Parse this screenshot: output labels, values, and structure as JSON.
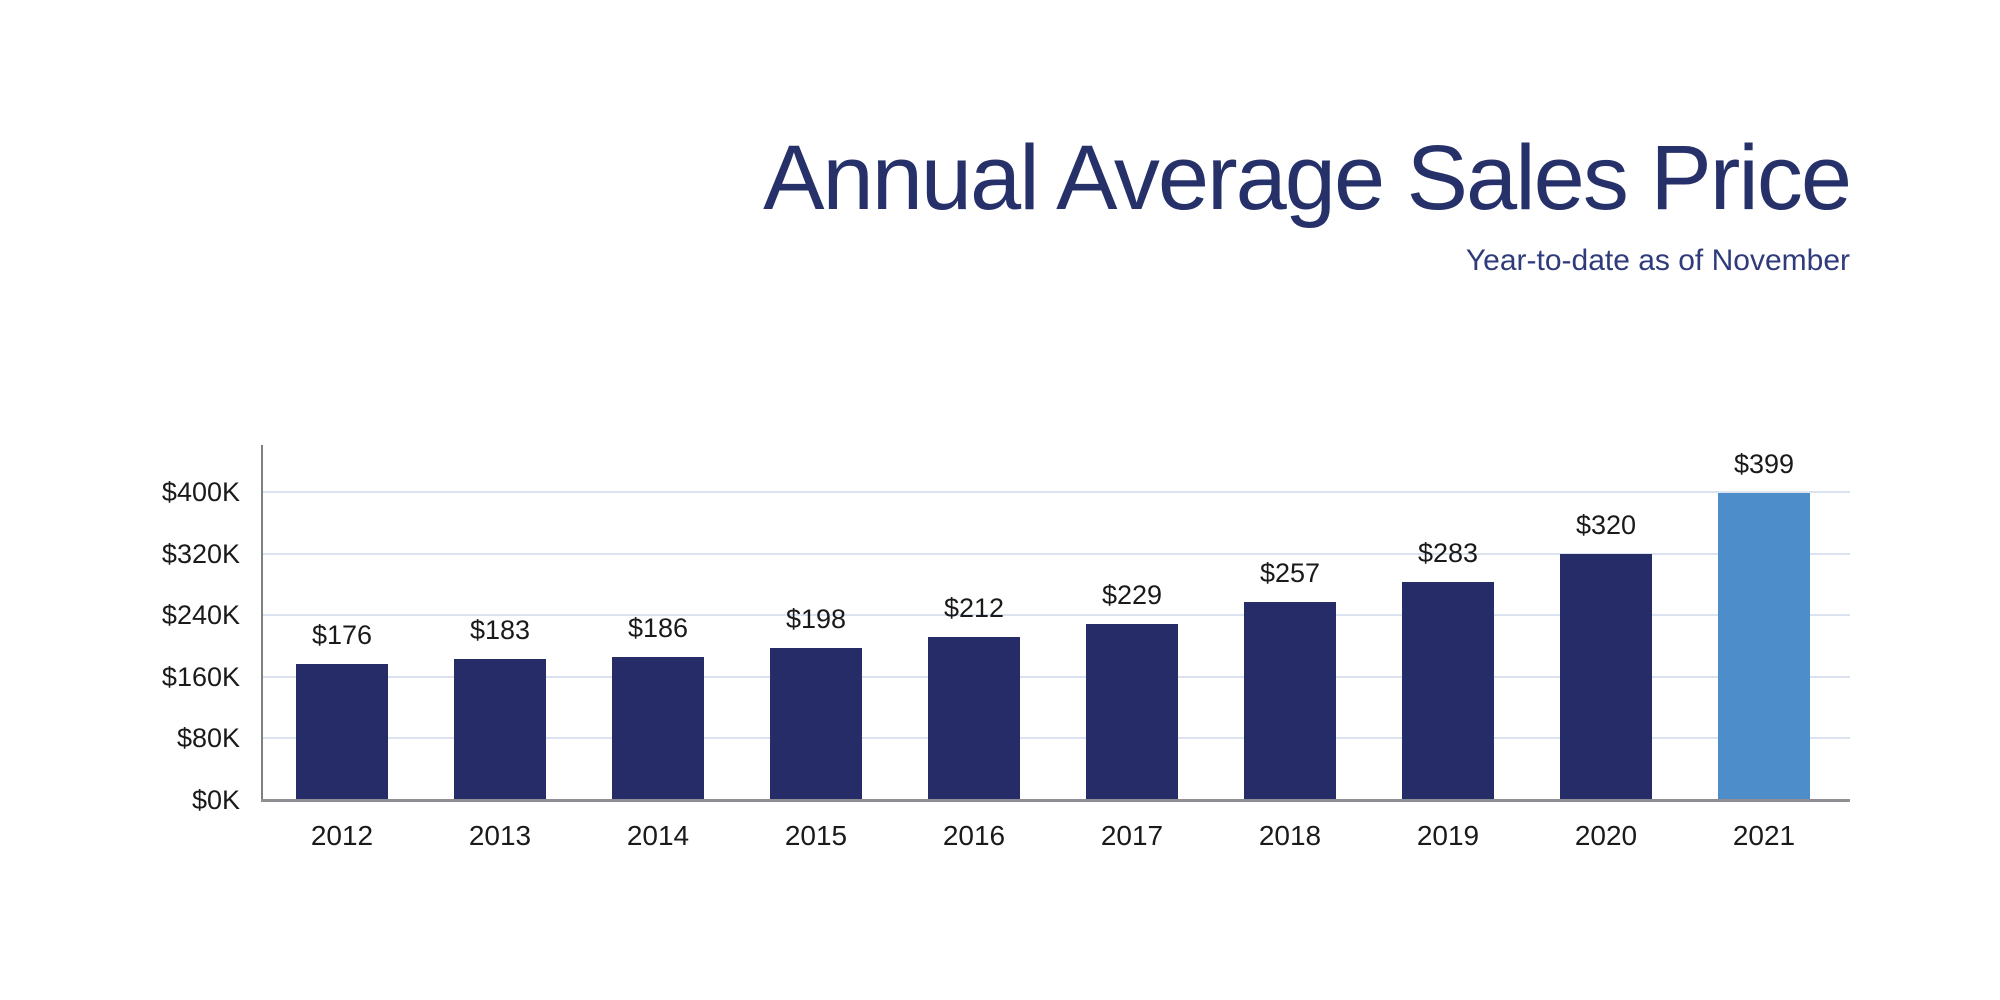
{
  "header": {
    "title": "Annual Average Sales Price",
    "subtitle": "Year-to-date as of November"
  },
  "colors": {
    "title_navy": "#273169",
    "subtitle_navy": "#2f3b7a",
    "bar_navy": "#252c67",
    "bar_highlight_blue": "#4d8dc9",
    "gridline": "#dce3f0",
    "axis_gray": "#8e8e93",
    "label_black": "#1a1a1c"
  },
  "chart_data": {
    "type": "bar",
    "title": "Annual Average Sales Price",
    "subtitle": "Year-to-date as of November",
    "categories": [
      "2012",
      "2013",
      "2014",
      "2015",
      "2016",
      "2017",
      "2018",
      "2019",
      "2020",
      "2021"
    ],
    "values": [
      176,
      183,
      186,
      198,
      212,
      229,
      257,
      283,
      320,
      399
    ],
    "value_labels": [
      "$176",
      "$183",
      "$186",
      "$198",
      "$212",
      "$229",
      "$257",
      "$283",
      "$320",
      "$399"
    ],
    "values_unit": "USD thousands",
    "y_ticks": [
      {
        "value": 0,
        "label": "$0K"
      },
      {
        "value": 80,
        "label": "$80K"
      },
      {
        "value": 160,
        "label": "$160K"
      },
      {
        "value": 240,
        "label": "$240K"
      },
      {
        "value": 320,
        "label": "$320K"
      },
      {
        "value": 400,
        "label": "$400K"
      }
    ],
    "ylim": [
      0,
      460
    ],
    "xlabel": "",
    "ylabel": "",
    "grid": "horizontal",
    "legend": "none",
    "highlight_index": 9
  }
}
